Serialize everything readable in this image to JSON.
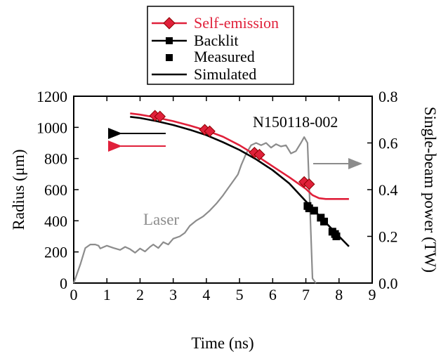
{
  "chart_data": {
    "type": "line",
    "run_id": "N150118-002",
    "xlabel": "Time (ns)",
    "ylabel_left": "Radius (μm)",
    "ylabel_right": "Single-beam power (TW)",
    "xlim": [
      0,
      9
    ],
    "ylim_left": [
      0,
      1200
    ],
    "ylim_right": [
      0.0,
      0.8
    ],
    "x_ticks": [
      "0",
      "1",
      "2",
      "3",
      "4",
      "5",
      "6",
      "7",
      "8",
      "9"
    ],
    "y_ticks_left": [
      "0",
      "200",
      "400",
      "600",
      "800",
      "1000",
      "1200"
    ],
    "y_ticks_right": [
      "0.0",
      "0.2",
      "0.4",
      "0.6",
      "0.8"
    ],
    "annotation_laser": "Laser",
    "legend": {
      "position": "top-center",
      "entries": [
        {
          "label": "Self-emission",
          "marker": "diamond",
          "line": true,
          "color": "#e0203a"
        },
        {
          "label": "Backlit",
          "marker": "square",
          "line": true,
          "color": "#000000"
        },
        {
          "label": "Measured",
          "marker": "square",
          "line": false,
          "color": "#000000"
        },
        {
          "label": "Simulated",
          "marker": "none",
          "line": true,
          "color": "#000000"
        }
      ]
    },
    "colors": {
      "self_emission": "#e0203a",
      "backlit": "#000000",
      "laser": "#8c8c8c"
    },
    "series": [
      {
        "name": "Self-emission",
        "kind": "simulated",
        "axis": "left",
        "x": [
          1.7,
          2.0,
          2.5,
          3.0,
          3.5,
          4.0,
          4.5,
          5.0,
          5.5,
          6.0,
          6.5,
          7.0,
          7.2,
          7.4,
          7.6,
          8.0,
          8.3
        ],
        "y": [
          1090,
          1082,
          1063,
          1040,
          1012,
          980,
          940,
          885,
          820,
          750,
          680,
          605,
          565,
          545,
          540,
          540,
          540
        ]
      },
      {
        "name": "Self-emission",
        "kind": "measured",
        "axis": "left",
        "x": [
          2.45,
          2.6,
          3.95,
          4.1,
          5.45,
          5.6,
          6.95,
          7.1
        ],
        "y": [
          1075,
          1070,
          985,
          975,
          838,
          825,
          650,
          635
        ]
      },
      {
        "name": "Backlit",
        "kind": "simulated",
        "axis": "left",
        "x": [
          1.7,
          2.0,
          2.5,
          3.0,
          3.5,
          4.0,
          4.5,
          5.0,
          5.5,
          6.0,
          6.5,
          7.0,
          7.5,
          8.0,
          8.3
        ],
        "y": [
          1068,
          1060,
          1040,
          1015,
          985,
          950,
          905,
          855,
          795,
          725,
          640,
          525,
          410,
          300,
          235
        ]
      },
      {
        "name": "Backlit",
        "kind": "measured",
        "axis": "left",
        "x": [
          7.05,
          7.1,
          7.25,
          7.45,
          7.55,
          7.8,
          7.88,
          7.92
        ],
        "y": [
          495,
          480,
          465,
          420,
          395,
          330,
          315,
          300
        ]
      },
      {
        "name": "Laser",
        "kind": "power",
        "axis": "right",
        "x": [
          0.0,
          0.2,
          0.35,
          0.5,
          0.65,
          0.75,
          0.8,
          1.0,
          1.2,
          1.4,
          1.55,
          1.7,
          1.85,
          2.0,
          2.15,
          2.3,
          2.4,
          2.55,
          2.7,
          2.85,
          3.0,
          3.2,
          3.35,
          3.5,
          3.7,
          3.9,
          4.1,
          4.3,
          4.5,
          4.65,
          4.8,
          4.95,
          5.05,
          5.2,
          5.35,
          5.5,
          5.65,
          5.8,
          5.95,
          6.1,
          6.25,
          6.4,
          6.55,
          6.7,
          6.85,
          6.95,
          7.05,
          7.12,
          7.2,
          7.3
        ],
        "y": [
          0.0,
          0.08,
          0.15,
          0.165,
          0.165,
          0.16,
          0.148,
          0.16,
          0.15,
          0.142,
          0.155,
          0.145,
          0.13,
          0.148,
          0.135,
          0.155,
          0.165,
          0.15,
          0.175,
          0.165,
          0.19,
          0.2,
          0.215,
          0.245,
          0.268,
          0.285,
          0.31,
          0.34,
          0.375,
          0.405,
          0.435,
          0.465,
          0.505,
          0.555,
          0.59,
          0.6,
          0.59,
          0.6,
          0.58,
          0.595,
          0.585,
          0.59,
          0.555,
          0.565,
          0.6,
          0.625,
          0.6,
          0.34,
          0.02,
          0.0
        ]
      }
    ]
  }
}
